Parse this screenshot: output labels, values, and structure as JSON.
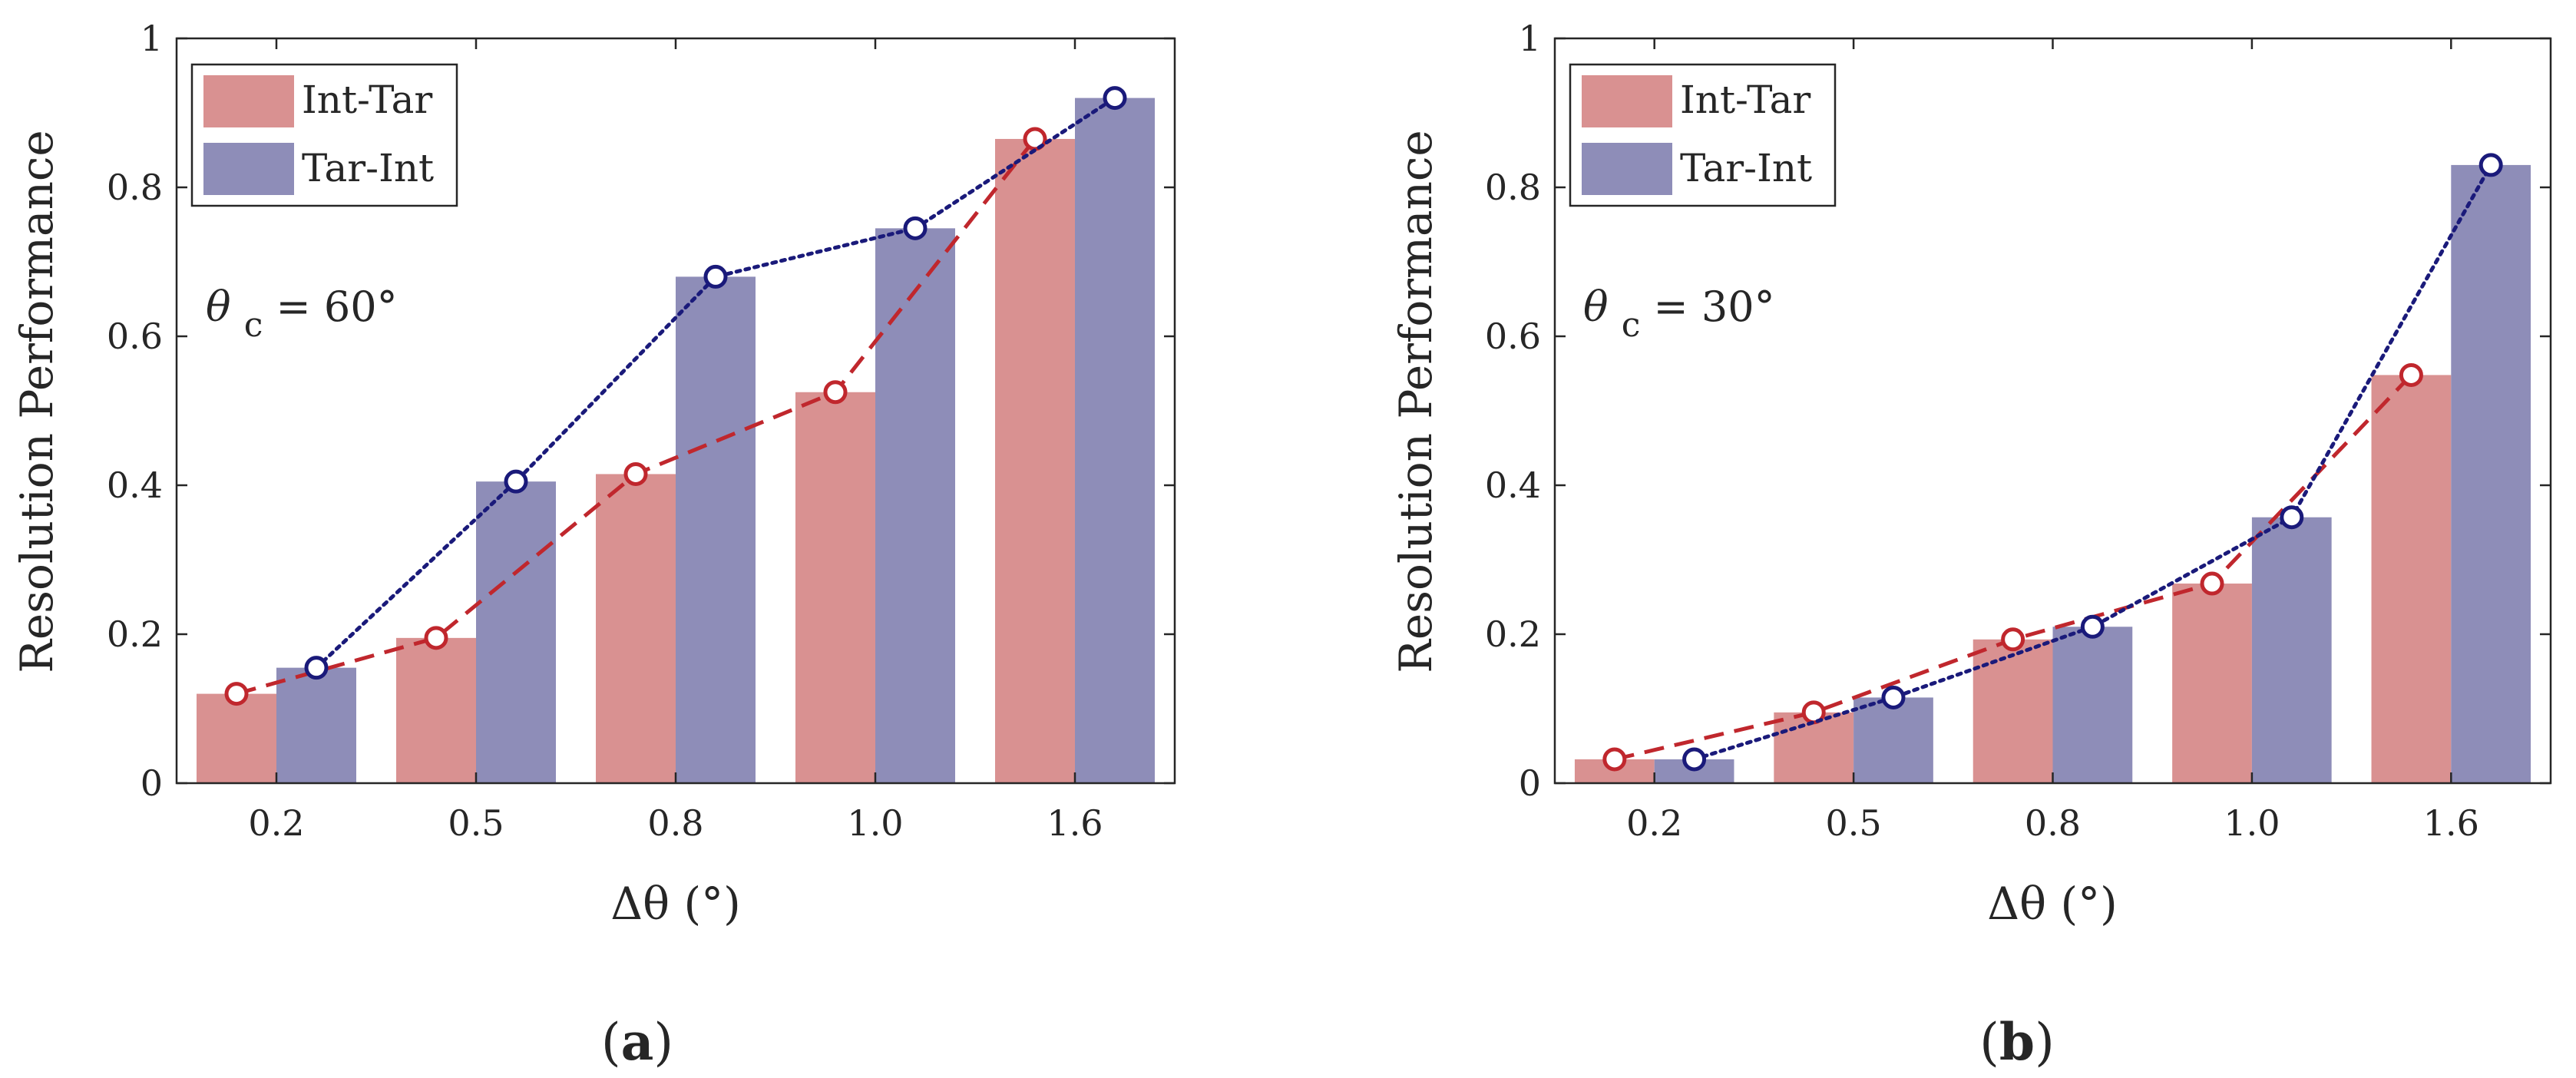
{
  "figure": {
    "captions": [
      {
        "open": "(",
        "letter": "a",
        "close": ")"
      },
      {
        "open": "(",
        "letter": "b",
        "close": ")"
      }
    ]
  },
  "colors": {
    "int_tar_bar": "#D99191",
    "tar_int_bar": "#8E8DB8",
    "int_tar_line": "#C0272D",
    "tar_int_line": "#1A1A7A"
  },
  "chart_data": [
    {
      "type": "bar",
      "panel": "a",
      "title": "",
      "xlabel": "Δθ (°)",
      "ylabel": "Resolution Performance",
      "ylim": [
        0,
        1
      ],
      "yticks": [
        "0",
        "0.2",
        "0.4",
        "0.6",
        "0.8",
        "1"
      ],
      "yticks_values": [
        0,
        0.2,
        0.4,
        0.6,
        0.8,
        1.0
      ],
      "categories": [
        "0.2",
        "0.5",
        "0.8",
        "1.0",
        "1.6"
      ],
      "annotation": {
        "symbol": "θ",
        "subscript": "c",
        "value": " = 60°"
      },
      "legend_position": "top-left",
      "series": [
        {
          "name": "Int-Tar",
          "values": [
            0.12,
            0.195,
            0.415,
            0.525,
            0.865
          ],
          "line_style": "dashed",
          "marker": "circle"
        },
        {
          "name": "Tar-Int",
          "values": [
            0.155,
            0.405,
            0.68,
            0.745,
            0.92
          ],
          "line_style": "dotted",
          "marker": "circle"
        }
      ]
    },
    {
      "type": "bar",
      "panel": "b",
      "title": "",
      "xlabel": "Δθ (°)",
      "ylabel": "Resolution Performance",
      "ylim": [
        0,
        1
      ],
      "yticks": [
        "0",
        "0.2",
        "0.4",
        "0.6",
        "0.8",
        "1"
      ],
      "yticks_values": [
        0,
        0.2,
        0.4,
        0.6,
        0.8,
        1.0
      ],
      "categories": [
        "0.2",
        "0.5",
        "0.8",
        "1.0",
        "1.6"
      ],
      "annotation": {
        "symbol": "θ",
        "subscript": "c",
        "value": " = 30°"
      },
      "legend_position": "top-left",
      "series": [
        {
          "name": "Int-Tar",
          "values": [
            0.032,
            0.095,
            0.193,
            0.268,
            0.548
          ],
          "line_style": "dashed",
          "marker": "circle"
        },
        {
          "name": "Tar-Int",
          "values": [
            0.032,
            0.115,
            0.21,
            0.357,
            0.83
          ],
          "line_style": "dotted",
          "marker": "circle"
        }
      ]
    }
  ]
}
